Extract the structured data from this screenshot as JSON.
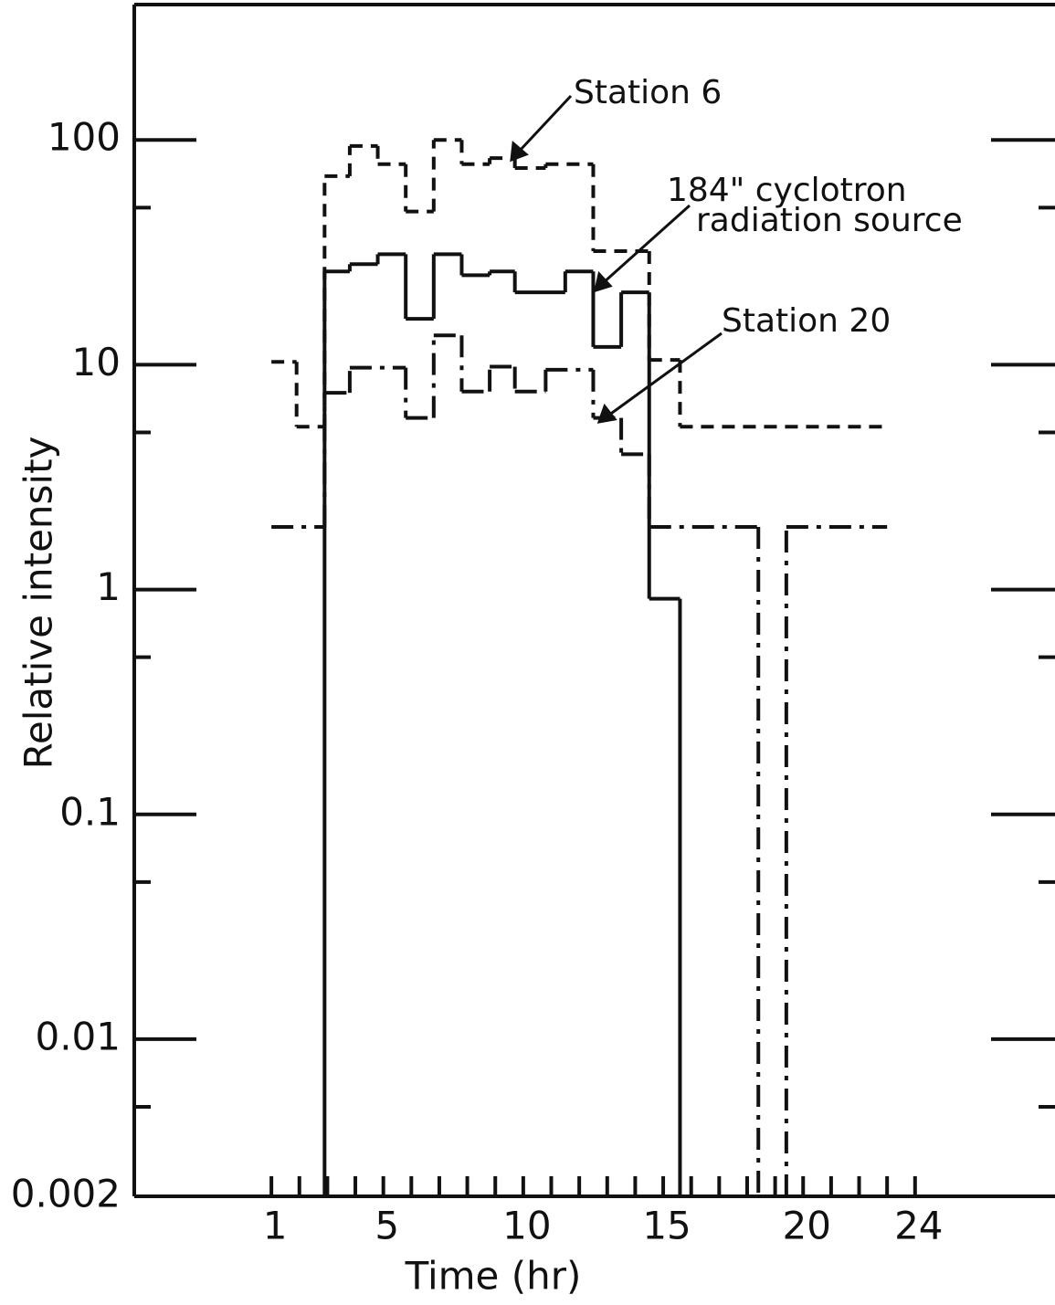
{
  "chart_data": {
    "type": "step",
    "xlabel": "Time  (hr)",
    "ylabel": "Relative intensity",
    "log_y": true,
    "ylim": [
      0.002,
      400
    ],
    "yticks": [
      100,
      10,
      1,
      0.1,
      0.01,
      0.002
    ],
    "yminorticks": [
      50,
      5,
      0.5,
      0.05,
      0.005
    ],
    "xlim": [
      -3.9,
      29
    ],
    "xticks": [
      1,
      5,
      10,
      15,
      20,
      24
    ],
    "xminorticks": [
      2,
      3,
      4,
      6,
      7,
      8,
      9,
      11,
      12,
      13,
      14,
      16,
      17,
      18,
      19,
      21,
      22,
      23
    ],
    "series": [
      {
        "color": "#111111",
        "style": "dashed",
        "bins": [
          1,
          1.9,
          2.9,
          3.8,
          4.8,
          5.8,
          6.8,
          7.8,
          8.8,
          9.7,
          10.8,
          12.5,
          14.5,
          15.6,
          23
        ],
        "values": [
          10.3,
          5.3,
          69,
          94,
          78,
          48,
          100,
          78,
          83,
          75,
          78,
          32,
          10.5,
          5.3
        ]
      },
      {
        "color": "#111111",
        "style": "solid",
        "bins": [
          1,
          2.9,
          3.8,
          4.8,
          5.8,
          6.8,
          7.8,
          8.8,
          9.7,
          11.5,
          12.5,
          13.5,
          14.5,
          15.6,
          23
        ],
        "values": [
          null,
          26,
          28,
          31,
          16,
          31,
          25,
          26,
          21,
          26,
          12,
          21,
          0.91,
          null
        ]
      },
      {
        "color": "#111111",
        "style": "dashdot",
        "bins": [
          1,
          2.9,
          3.8,
          5.8,
          6.8,
          7.8,
          8.8,
          9.7,
          10.8,
          12.5,
          13.5,
          14.5,
          18.4,
          19.4,
          23
        ],
        "values": [
          1.9,
          7.5,
          9.7,
          5.8,
          13.5,
          7.6,
          9.8,
          7.6,
          9.5,
          5.8,
          4,
          1.9,
          null,
          1.9
        ]
      }
    ],
    "annotations": [
      "Station 6",
      "184\" cyclotron",
      "radiation source",
      "Station 20"
    ]
  }
}
